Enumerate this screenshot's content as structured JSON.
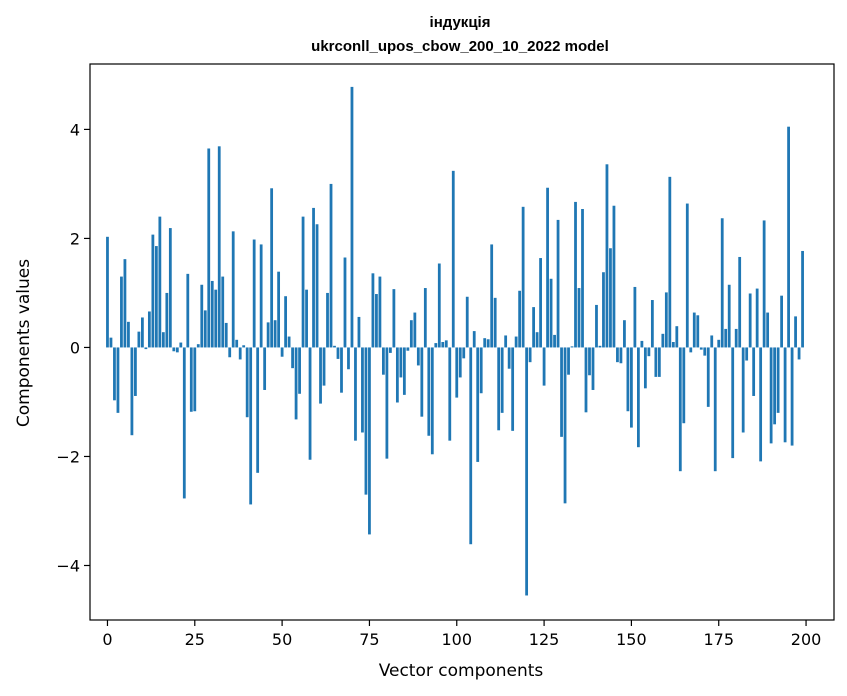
{
  "chart_data": {
    "type": "bar",
    "title": "індукція",
    "subtitle": "ukrconll_upos_cbow_200_10_2022 model",
    "xlabel": "Vector components",
    "ylabel": "Components values",
    "xlim": [
      -5,
      208
    ],
    "ylim": [
      -5.0,
      5.2
    ],
    "xticks": [
      0,
      25,
      50,
      75,
      100,
      125,
      150,
      175,
      200
    ],
    "yticks": [
      -4,
      -2,
      0,
      2,
      4
    ],
    "xtick_labels": [
      "0",
      "25",
      "50",
      "75",
      "100",
      "125",
      "150",
      "175",
      "200"
    ],
    "ytick_labels": [
      "−4",
      "−2",
      "0",
      "2",
      "4"
    ],
    "grid": false,
    "color": "#1f77b4",
    "values": [
      2.03,
      0.18,
      -0.97,
      -1.2,
      1.3,
      1.62,
      0.47,
      -1.61,
      -0.89,
      0.29,
      0.55,
      -0.03,
      0.66,
      2.07,
      1.86,
      2.4,
      0.28,
      1.0,
      2.19,
      -0.07,
      -0.09,
      0.09,
      -2.77,
      1.35,
      -1.18,
      -1.17,
      0.06,
      1.15,
      0.68,
      3.65,
      1.22,
      1.06,
      3.69,
      1.3,
      0.45,
      -0.18,
      2.13,
      0.14,
      -0.22,
      0.04,
      -1.28,
      -2.88,
      1.98,
      -2.3,
      1.89,
      -0.78,
      0.46,
      2.92,
      0.5,
      1.39,
      -0.17,
      0.94,
      0.2,
      -0.38,
      -1.32,
      -0.85,
      2.4,
      1.06,
      -2.06,
      2.56,
      2.26,
      -1.03,
      -0.7,
      1.0,
      3.0,
      0.03,
      -0.21,
      -0.83,
      1.65,
      -0.4,
      4.78,
      -1.71,
      0.56,
      -1.56,
      -2.7,
      -3.43,
      1.36,
      0.98,
      1.3,
      -0.5,
      -2.04,
      -0.1,
      1.07,
      -1.01,
      -0.55,
      -0.87,
      -0.06,
      0.5,
      0.64,
      -0.33,
      -1.27,
      1.09,
      -1.62,
      -1.96,
      0.08,
      1.54,
      0.1,
      0.13,
      -1.71,
      3.24,
      -0.92,
      -0.55,
      -0.2,
      0.93,
      -3.61,
      0.3,
      -2.1,
      -0.84,
      0.17,
      0.15,
      1.89,
      0.91,
      -1.52,
      -1.2,
      0.22,
      -0.39,
      -1.53,
      0.2,
      1.04,
      2.58,
      -4.55,
      -0.27,
      0.74,
      0.28,
      1.64,
      -0.7,
      2.93,
      1.26,
      0.23,
      2.34,
      -1.64,
      -2.86,
      -0.5,
      0.02,
      2.67,
      1.09,
      2.54,
      -1.19,
      -0.51,
      -0.78,
      0.78,
      0.03,
      1.38,
      3.36,
      1.82,
      2.6,
      -0.27,
      -0.29,
      0.5,
      -1.17,
      -1.47,
      1.11,
      -1.83,
      0.12,
      -0.75,
      -0.16,
      0.87,
      -0.54,
      -0.54,
      0.25,
      1.01,
      3.13,
      0.1,
      0.39,
      -2.27,
      -1.39,
      2.64,
      -0.09,
      0.64,
      0.59,
      -0.04,
      -0.15,
      -1.09,
      0.22,
      -2.27,
      0.14,
      2.37,
      0.34,
      1.15,
      -2.03,
      0.34,
      1.66,
      -1.56,
      -0.24,
      0.99,
      -0.89,
      1.08,
      -2.09,
      2.33,
      0.64,
      -1.76,
      -1.41,
      -1.2,
      0.95,
      -1.74,
      4.05,
      -1.8,
      0.57,
      -0.22,
      1.77
    ]
  }
}
